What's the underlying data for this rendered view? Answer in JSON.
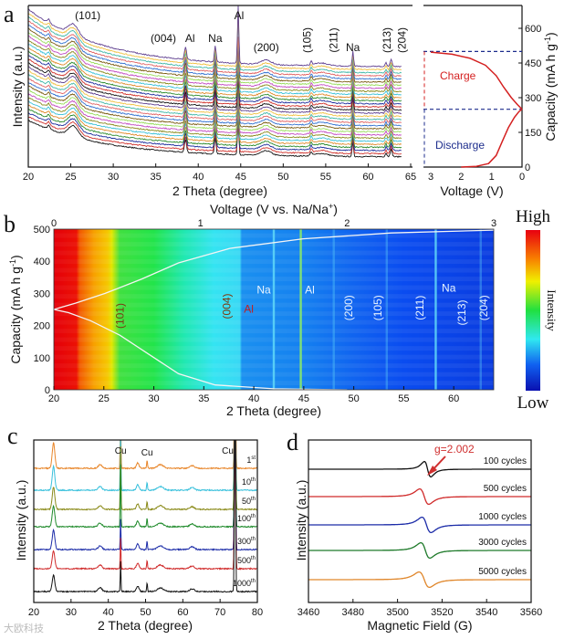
{
  "chart_data": [
    {
      "panel": "a",
      "type": "line",
      "title": "",
      "xlabel": "2 Theta (degree)",
      "ylabel": "Intensity (a.u.)",
      "xlim": [
        20,
        65.5
      ],
      "xticks": [
        20,
        25,
        30,
        35,
        40,
        45,
        50,
        55,
        60,
        65
      ],
      "scan_count": 30,
      "peaks": [
        {
          "label": "(101)",
          "x": 25.3
        },
        {
          "label": "(004)",
          "x": 37.8
        },
        {
          "label": "Al",
          "x": 38.5
        },
        {
          "label": "Na",
          "x": 42.0
        },
        {
          "label": "Al",
          "x": 44.7
        },
        {
          "label": "(200)",
          "x": 48.0
        },
        {
          "label": "(105)",
          "x": 53.3
        },
        {
          "label": "(211)",
          "x": 55.0
        },
        {
          "label": "Na",
          "x": 58.2
        },
        {
          "label": "(213)",
          "x": 62.1
        },
        {
          "label": "(204)",
          "x": 62.7
        }
      ],
      "series_colors": [
        "#111111",
        "#d0302a",
        "#1c2c9c",
        "#2a8a2a",
        "#e08a2a",
        "#38c0d8",
        "#8a8a1c",
        "#c24ac2",
        "#98dc5a",
        "#7a5a10",
        "#3070d0",
        "#e06060",
        "#40b8a8",
        "#f0c040",
        "#604090"
      ]
    },
    {
      "panel": "a-right",
      "type": "line",
      "xlabel": "Voltage (V)",
      "ylabel": "Capacity (mA h g-1)",
      "ylabel_parts": {
        "main": "Capacity (mA h g",
        "sup": "-1",
        "end": ")"
      },
      "xlim": [
        3,
        0
      ],
      "ylim": [
        0,
        650
      ],
      "xticks": [
        3,
        2,
        1,
        0
      ],
      "yticks": [
        0,
        150,
        300,
        450,
        600
      ],
      "annotations": {
        "charge": "Charge",
        "discharge": "Discharge"
      },
      "reference_lines": [
        250,
        500
      ],
      "series": [
        {
          "name": "Discharge",
          "points": [
            [
              2.0,
              0
            ],
            [
              1.5,
              3
            ],
            [
              1.1,
              15
            ],
            [
              0.85,
              50
            ],
            [
              0.65,
              110
            ],
            [
              0.45,
              170
            ],
            [
              0.25,
              215
            ],
            [
              0.1,
              240
            ],
            [
              0,
              250
            ]
          ]
        },
        {
          "name": "Charge",
          "points": [
            [
              0,
              250
            ],
            [
              0.15,
              270
            ],
            [
              0.35,
              300
            ],
            [
              0.6,
              345
            ],
            [
              0.85,
              395
            ],
            [
              1.2,
              440
            ],
            [
              1.7,
              470
            ],
            [
              2.3,
              488
            ],
            [
              3,
              497
            ]
          ]
        }
      ],
      "colors": {
        "charge": "#d42020",
        "discharge": "#1c2c8c"
      }
    },
    {
      "panel": "b",
      "type": "heatmap",
      "xlabel": "2 Theta (degree)",
      "ylabel": "Capacity (mA h g-1)",
      "ylabel_parts": {
        "main": "Capacity (mA h g",
        "sup": "-1",
        "end": ")"
      },
      "top_xlabel": "Voltage (V vs. Na/Na+)",
      "top_xlabel_parts": {
        "main": "Voltage (V vs. Na/Na",
        "sup": "+",
        "end": ")"
      },
      "xlim": [
        20,
        64
      ],
      "ylim": [
        0,
        500
      ],
      "xticks": [
        20,
        25,
        30,
        35,
        40,
        45,
        50,
        55,
        60
      ],
      "yticks": [
        0,
        100,
        200,
        300,
        400,
        500
      ],
      "top_xlim": [
        0,
        3
      ],
      "top_xticks": [
        0,
        1,
        2,
        3
      ],
      "colorbar": {
        "title": "Intensity",
        "high": "High",
        "low": "Low"
      },
      "labels": [
        {
          "text": "(101)",
          "x": 26.6,
          "y": 230,
          "rotate": true,
          "color": "#7a3a10"
        },
        {
          "text": "(004)",
          "x": 37.3,
          "y": 260,
          "rotate": true,
          "color": "#7a3a10"
        },
        {
          "text": "Al",
          "x": 39.5,
          "y": 240,
          "rotate": false,
          "color": "#c02020"
        },
        {
          "text": "Na",
          "x": 41.0,
          "y": 300,
          "rotate": false,
          "color": "#e8f4ff"
        },
        {
          "text": "Al",
          "x": 45.6,
          "y": 300,
          "rotate": false,
          "color": "#e8f4ff"
        },
        {
          "text": "(200)",
          "x": 49.5,
          "y": 255,
          "rotate": true,
          "color": "#e8f4ff"
        },
        {
          "text": "(105)",
          "x": 52.4,
          "y": 255,
          "rotate": true,
          "color": "#e8f4ff"
        },
        {
          "text": "(211)",
          "x": 56.6,
          "y": 255,
          "rotate": true,
          "color": "#e8f4ff"
        },
        {
          "text": "Na",
          "x": 59.5,
          "y": 305,
          "rotate": false,
          "color": "#e8f4ff"
        },
        {
          "text": "(213)",
          "x": 60.8,
          "y": 240,
          "rotate": true,
          "color": "#e8f4ff"
        },
        {
          "text": "(204)",
          "x": 63.0,
          "y": 255,
          "rotate": true,
          "color": "#e8f4ff"
        }
      ],
      "intensity_stops": [
        [
          20,
          "#e60008"
        ],
        [
          22.3,
          "#f01a00"
        ],
        [
          22.6,
          "#f25a00"
        ],
        [
          24,
          "#f7a000"
        ],
        [
          25.4,
          "#f5c800"
        ],
        [
          25.8,
          "#e0e800"
        ],
        [
          26.6,
          "#40e040"
        ],
        [
          30,
          "#22e44a"
        ],
        [
          33,
          "#20e8b0"
        ],
        [
          36,
          "#34e4f2"
        ],
        [
          38.6,
          "#38d8f4"
        ],
        [
          38.8,
          "#1a90f0"
        ],
        [
          45,
          "#1480f0"
        ],
        [
          50,
          "#1064f0"
        ],
        [
          55,
          "#0a4cf0"
        ],
        [
          64,
          "#0a3ce0"
        ]
      ],
      "peak_lines": [
        42.0,
        44.7,
        48.0,
        53.3,
        58.2,
        62.7
      ]
    },
    {
      "panel": "c",
      "type": "line",
      "xlabel": "2 Theta (degree)",
      "ylabel": "Intensity (a.u.)",
      "xlim": [
        20,
        80
      ],
      "xticks": [
        20,
        30,
        40,
        50,
        60,
        70,
        80
      ],
      "peak_labels": [
        {
          "text": "Cu",
          "x": 43.3
        },
        {
          "text": "Cu",
          "x": 50.4
        },
        {
          "text": "Cu",
          "x": 74.0
        }
      ],
      "series": [
        {
          "name": "1st",
          "num": "1",
          "sup": "st",
          "color": "#e8862a"
        },
        {
          "name": "10th",
          "num": "10",
          "sup": "th",
          "color": "#38c0dc"
        },
        {
          "name": "50th",
          "num": "50",
          "sup": "th",
          "color": "#8a8a18"
        },
        {
          "name": "100th",
          "num": "100",
          "sup": "th",
          "color": "#1e8a2a"
        },
        {
          "name": "300th",
          "num": "300",
          "sup": "th",
          "color": "#1c2ca8"
        },
        {
          "name": "500th",
          "num": "500",
          "sup": "th",
          "color": "#d02a2a"
        },
        {
          "name": "1000th",
          "num": "1000",
          "sup": "th",
          "color": "#111111"
        }
      ]
    },
    {
      "panel": "d",
      "type": "line",
      "xlabel": "Magnetic Field (G)",
      "ylabel": "Intensity (a.u.)",
      "xlim": [
        3460,
        3560
      ],
      "xticks": [
        3460,
        3480,
        3500,
        3520,
        3540,
        3560
      ],
      "annotation": {
        "text": "g=2.002",
        "color": "#d03030"
      },
      "series": [
        {
          "name": "100 cycles",
          "center": 3513.5,
          "width": 2.5,
          "color": "#111111"
        },
        {
          "name": "500 cycles",
          "center": 3512.0,
          "width": 3.5,
          "color": "#d02a2a"
        },
        {
          "name": "1000 cycles",
          "center": 3513.0,
          "width": 3.5,
          "color": "#1c2ca8"
        },
        {
          "name": "3000 cycles",
          "center": 3512.5,
          "width": 3.5,
          "color": "#1e7a2a"
        },
        {
          "name": "5000 cycles",
          "center": 3512.0,
          "width": 4.0,
          "color": "#e0862a"
        }
      ]
    }
  ],
  "panels": {
    "a": "a",
    "b": "b",
    "c": "c",
    "d": "d"
  },
  "watermark": "大欧科技"
}
